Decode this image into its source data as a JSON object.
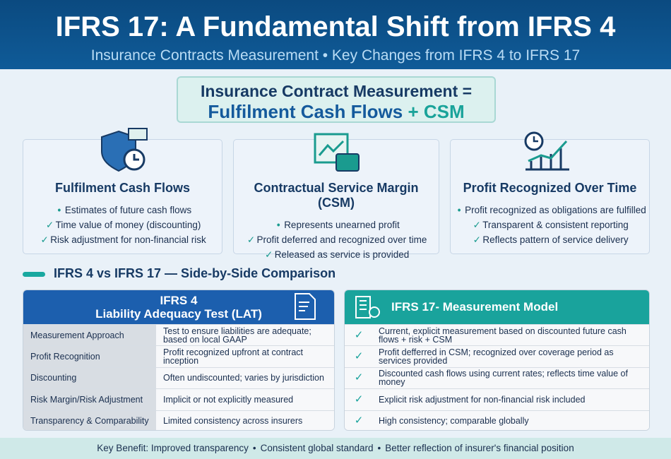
{
  "header": {
    "title": "IFRS 17: A Fundamental Shift from IFRS 4",
    "subtitle": "Insurance Contracts Measurement • Key Changes from IFRS 4 to IFRS 17"
  },
  "formula": {
    "line1": "Insurance Contract Measurement =",
    "term1": "Fulfilment Cash Flows",
    "term2": "+ CSM"
  },
  "cards": [
    {
      "title": "Fulfilment Cash Flows",
      "bullets": [
        "Estimates of future cash flows"
      ],
      "checks": [
        "Time value of money (discounting)",
        "Risk adjustment for non-financial risk"
      ]
    },
    {
      "title": "Contractual Service Margin (CSM)",
      "bullets": [
        "Represents unearned profit"
      ],
      "checks": [
        "Profit deferred and recognized over time",
        "Released as service is provided"
      ]
    },
    {
      "title": "Profit Recognized Over Time",
      "bullets": [
        "Profit recognized as obligations are fulfilled"
      ],
      "checks": [
        "Transparent & consistent reporting",
        "Reflects pattern of service delivery"
      ]
    }
  ],
  "comparison": {
    "heading": "IFRS 4 vs IFRS 17 — Side-by-Side Comparison"
  },
  "ifrs4": {
    "title": "IFRS 4",
    "subtitle": "Liability Adequacy Test (LAT)",
    "rows": [
      [
        "Measurement Approach",
        "Test to ensure liabilities are adequate; based on local GAAP"
      ],
      [
        "Profit Recognition",
        "Profit recognized upfront at contract inception"
      ],
      [
        "Discounting",
        "Often undiscounted; varies by jurisdiction"
      ],
      [
        "Risk Margin/Risk Adjustment",
        "Implicit or not explicitly measured"
      ],
      [
        "Transparency & Comparability",
        "Limited consistency across insurers"
      ]
    ]
  },
  "ifrs17": {
    "title": "IFRS 17- Measurement Model",
    "rows": [
      "Current, explicit measurement based on discounted future cash flows + risk + CSM",
      "Profit defferred in CSM; recognized over coverage period as services provided",
      "Discounted cash flows using current rates; reflects time value of money",
      "Explicit risk adjustment for non-financial risk included",
      "High consistency; comparable globally"
    ]
  },
  "footer": {
    "items": [
      "Key Benefit: Improved transparency",
      "Consistent global standard",
      "Better reflection of insurer's financial position"
    ]
  }
}
